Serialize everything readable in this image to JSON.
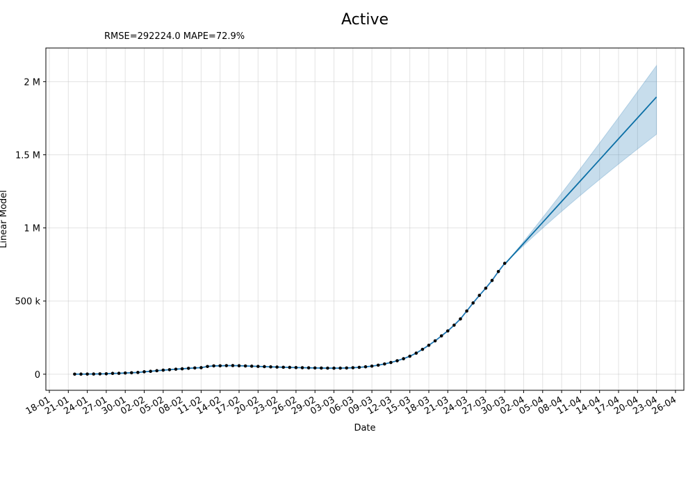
{
  "chart_data": {
    "type": "line",
    "title": "Active",
    "subtitle": "RMSE=292224.0 MAPE=72.9%",
    "xlabel": "Date",
    "ylabel": "Linear Model",
    "grid": true,
    "x_ticks": [
      "18-01",
      "21-01",
      "24-01",
      "27-01",
      "30-01",
      "02-02",
      "05-02",
      "08-02",
      "11-02",
      "14-02",
      "17-02",
      "20-02",
      "23-02",
      "26-02",
      "29-02",
      "03-03",
      "06-03",
      "09-03",
      "12-03",
      "15-03",
      "18-03",
      "21-03",
      "24-03",
      "27-03",
      "30-03",
      "02-04",
      "05-04",
      "08-04",
      "11-04",
      "14-04",
      "17-04",
      "20-04",
      "23-04",
      "26-04"
    ],
    "y_ticks": [
      {
        "value": 0,
        "label": "0"
      },
      {
        "value": 500000,
        "label": "500 k"
      },
      {
        "value": 1000000,
        "label": "1 M"
      },
      {
        "value": 1500000,
        "label": "1.5 M"
      },
      {
        "value": 2000000,
        "label": "2 M"
      }
    ],
    "ylim": [
      -110000,
      2230000
    ],
    "observed": [
      555,
      653,
      941,
      1438,
      2118,
      2788,
      5578,
      6166,
      8234,
      9927,
      12038,
      16787,
      19881,
      23892,
      27636,
      30818,
      34392,
      37120,
      40150,
      42762,
      44802,
      52875,
      56799,
      57396,
      58652,
      58910,
      57940,
      56300,
      54921,
      53200,
      51800,
      50200,
      49000,
      47600,
      46500,
      45400,
      44500,
      43600,
      42800,
      42000,
      41600,
      41300,
      41600,
      42500,
      44300,
      46900,
      50700,
      55300,
      61800,
      70100,
      80000,
      92000,
      106000,
      123000,
      144000,
      170000,
      198000,
      228000,
      262000,
      296000,
      335000,
      378000,
      432000,
      487000,
      539000,
      588000,
      641000,
      702000,
      758000
    ],
    "forecast": {
      "start": 752000,
      "end": 1895000,
      "band_upper_end": 2110000,
      "band_lower_end": 1640000
    }
  }
}
